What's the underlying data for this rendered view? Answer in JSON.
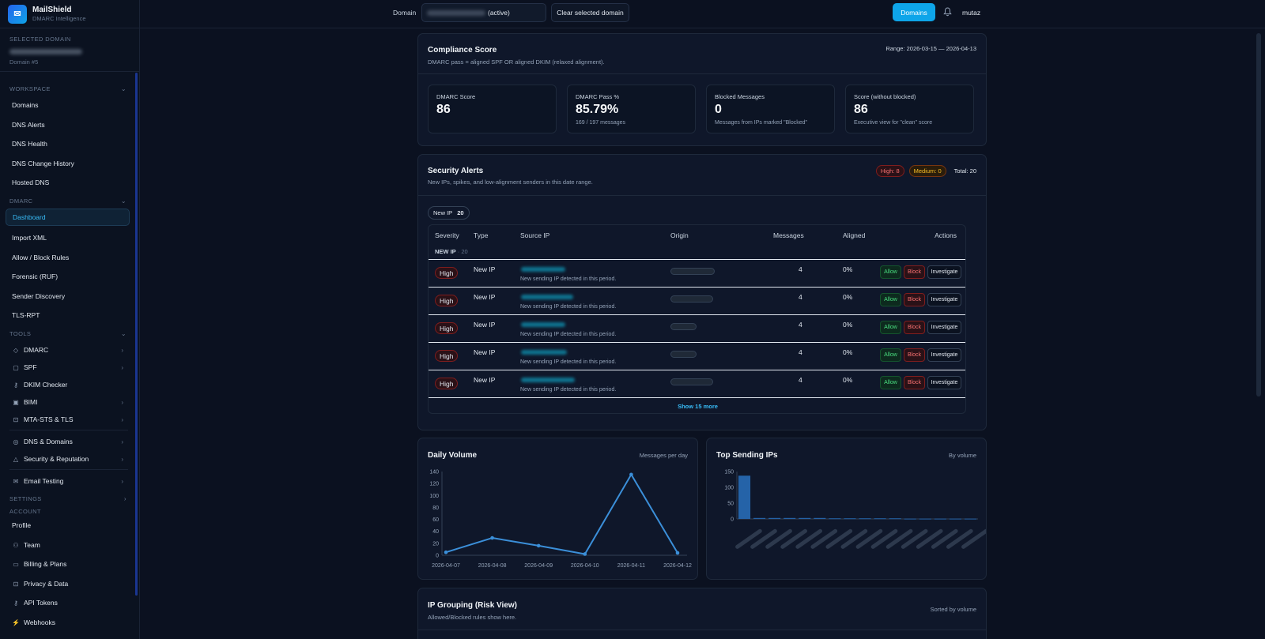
{
  "app": {
    "name": "MailShield",
    "subtitle": "DMARC Intelligence"
  },
  "sidebar": {
    "selected_label": "SELECTED DOMAIN",
    "selected_id": "Domain #5",
    "workspace_label": "WORKSPACE",
    "workspace_items": [
      "Domains",
      "DNS Alerts",
      "DNS Health",
      "DNS Change History",
      "Hosted DNS"
    ],
    "dmarc_label": "DMARC",
    "dmarc_items": [
      "Dashboard",
      "Import XML",
      "Allow / Block Rules",
      "Forensic (RUF)",
      "Sender Discovery",
      "TLS-RPT"
    ],
    "tools_label": "TOOLS",
    "tools_items": [
      "DMARC",
      "SPF",
      "DKIM Checker",
      "BIMI",
      "MTA-STS & TLS",
      "DNS & Domains",
      "Security & Reputation",
      "Email Testing"
    ],
    "settings_label": "SETTINGS",
    "account_label": "ACCOUNT",
    "account_items": [
      "Profile",
      "Team",
      "Billing & Plans",
      "Privacy & Data",
      "API Tokens",
      "Webhooks"
    ]
  },
  "topbar": {
    "domain_label": "Domain",
    "domain_state": "(active)",
    "clear_label": "Clear selected domain",
    "domains_button": "Domains",
    "user": "mutaz"
  },
  "compliance": {
    "title": "Compliance Score",
    "subtitle": "DMARC pass = aligned SPF OR aligned DKIM (relaxed alignment).",
    "range": "Range: 2026-03-15 — 2026-04-13",
    "kpis": [
      {
        "label": "DMARC Score",
        "value": "86",
        "sub": ""
      },
      {
        "label": "DMARC Pass %",
        "value": "85.79%",
        "sub": "169 / 197 messages"
      },
      {
        "label": "Blocked Messages",
        "value": "0",
        "sub": "Messages from IPs marked \"Blocked\""
      },
      {
        "label": "Score (without blocked)",
        "value": "86",
        "sub": "Executive view for \"clean\" score"
      }
    ]
  },
  "alerts": {
    "title": "Security Alerts",
    "subtitle": "New IPs, spikes, and low-alignment senders in this date range.",
    "high_badge": "High: 8",
    "medium_badge": "Medium: 0",
    "total": "Total: 20",
    "chip_label": "New IP",
    "chip_count": "20",
    "columns": [
      "Severity",
      "Type",
      "Source IP",
      "Origin",
      "Messages",
      "Aligned",
      "Actions"
    ],
    "group_label": "NEW IP",
    "group_count": "· 20",
    "rows": [
      {
        "severity": "High",
        "type": "New IP",
        "detail": "New sending IP detected in this period.",
        "messages": "4",
        "aligned": "0%"
      },
      {
        "severity": "High",
        "type": "New IP",
        "detail": "New sending IP detected in this period.",
        "messages": "4",
        "aligned": "0%"
      },
      {
        "severity": "High",
        "type": "New IP",
        "detail": "New sending IP detected in this period.",
        "messages": "4",
        "aligned": "0%"
      },
      {
        "severity": "High",
        "type": "New IP",
        "detail": "New sending IP detected in this period.",
        "messages": "4",
        "aligned": "0%"
      },
      {
        "severity": "High",
        "type": "New IP",
        "detail": "New sending IP detected in this period.",
        "messages": "4",
        "aligned": "0%"
      }
    ],
    "allow": "Allow",
    "block": "Block",
    "investigate": "Investigate",
    "show_more": "Show 15 more"
  },
  "daily_volume": {
    "title": "Daily Volume",
    "hint": "Messages per day"
  },
  "top_ips": {
    "title": "Top Sending IPs",
    "hint": "By volume"
  },
  "ip_grouping": {
    "title": "IP Grouping (Risk View)",
    "subtitle": "Allowed/Blocked rules show here.",
    "hint": "Sorted by volume"
  },
  "colors": {
    "accent": "#0ea5e9",
    "line": "#3b8fd9",
    "bar": "#2563a8",
    "high": "#f87171",
    "medium": "#fbbf24"
  },
  "chart_data": [
    {
      "type": "line",
      "title": "Daily Volume",
      "x": [
        "2026-04-07",
        "2026-04-08",
        "2026-04-09",
        "2026-04-10",
        "2026-04-11",
        "2026-04-12"
      ],
      "series": [
        {
          "values": [
            5,
            29,
            16,
            2,
            135,
            4
          ]
        }
      ],
      "ylim": [
        0,
        140
      ],
      "yticks": [
        0,
        20,
        40,
        60,
        80,
        100,
        120,
        140
      ]
    },
    {
      "type": "bar",
      "title": "Top Sending IPs",
      "bar_count": 16,
      "values": [
        137,
        3,
        3,
        3,
        3,
        3,
        2,
        2,
        2,
        2,
        2,
        1,
        1,
        1,
        1,
        1
      ],
      "ylim": [
        0,
        150
      ],
      "yticks": [
        0,
        50,
        100,
        150
      ]
    }
  ]
}
